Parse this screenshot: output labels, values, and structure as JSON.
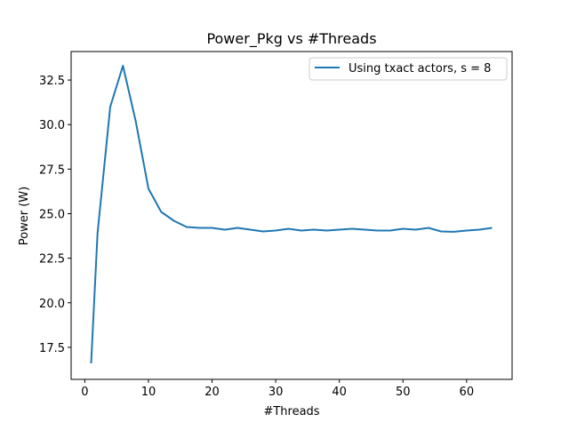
{
  "chart_data": {
    "type": "line",
    "title": "Power_Pkg vs #Threads",
    "xlabel": "#Threads",
    "ylabel": "Power (W)",
    "xlim": [
      -2.15,
      67.15
    ],
    "ylim": [
      15.7,
      34.1
    ],
    "grid": false,
    "legend_position": "top-right",
    "x_ticks": [
      0,
      10,
      20,
      30,
      40,
      50,
      60
    ],
    "x_tick_labels": [
      "0",
      "10",
      "20",
      "30",
      "40",
      "50",
      "60"
    ],
    "y_ticks": [
      17.5,
      20.0,
      22.5,
      25.0,
      27.5,
      30.0,
      32.5
    ],
    "y_tick_labels": [
      "17.5",
      "20.0",
      "22.5",
      "25.0",
      "27.5",
      "30.0",
      "32.5"
    ],
    "series": [
      {
        "name": "Using txact actors, s = 8",
        "color": "#1f77b4",
        "x": [
          1,
          2,
          4,
          6,
          8,
          10,
          12,
          14,
          16,
          18,
          20,
          22,
          24,
          26,
          28,
          30,
          32,
          34,
          36,
          38,
          40,
          42,
          44,
          46,
          48,
          50,
          52,
          54,
          56,
          58,
          60,
          62,
          64
        ],
        "y": [
          16.6,
          23.9,
          31.0,
          33.3,
          30.2,
          26.4,
          25.1,
          24.6,
          24.25,
          24.2,
          24.2,
          24.1,
          24.2,
          24.1,
          24.0,
          24.05,
          24.15,
          24.05,
          24.1,
          24.05,
          24.1,
          24.15,
          24.1,
          24.05,
          24.05,
          24.15,
          24.1,
          24.2,
          24.0,
          23.98,
          24.05,
          24.1,
          24.2
        ]
      }
    ]
  }
}
